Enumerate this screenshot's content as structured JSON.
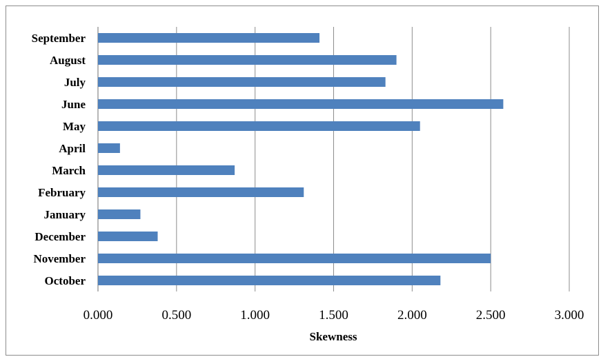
{
  "chart_data": {
    "type": "bar",
    "orientation": "horizontal",
    "categories": [
      "October",
      "November",
      "December",
      "January",
      "February",
      "March",
      "April",
      "May",
      "June",
      "July",
      "August",
      "September"
    ],
    "values": [
      2.18,
      2.5,
      0.38,
      0.27,
      1.31,
      0.87,
      0.14,
      2.05,
      2.58,
      1.83,
      1.9,
      1.41
    ],
    "xlabel": "Skewness",
    "ylabel": "",
    "xlim": [
      0,
      3
    ],
    "xticks": [
      "0.000",
      "0.500",
      "1.000",
      "1.500",
      "2.000",
      "2.500",
      "3.000"
    ],
    "grid": "vertical",
    "legend": "none",
    "bar_color": "#4f81bd"
  }
}
